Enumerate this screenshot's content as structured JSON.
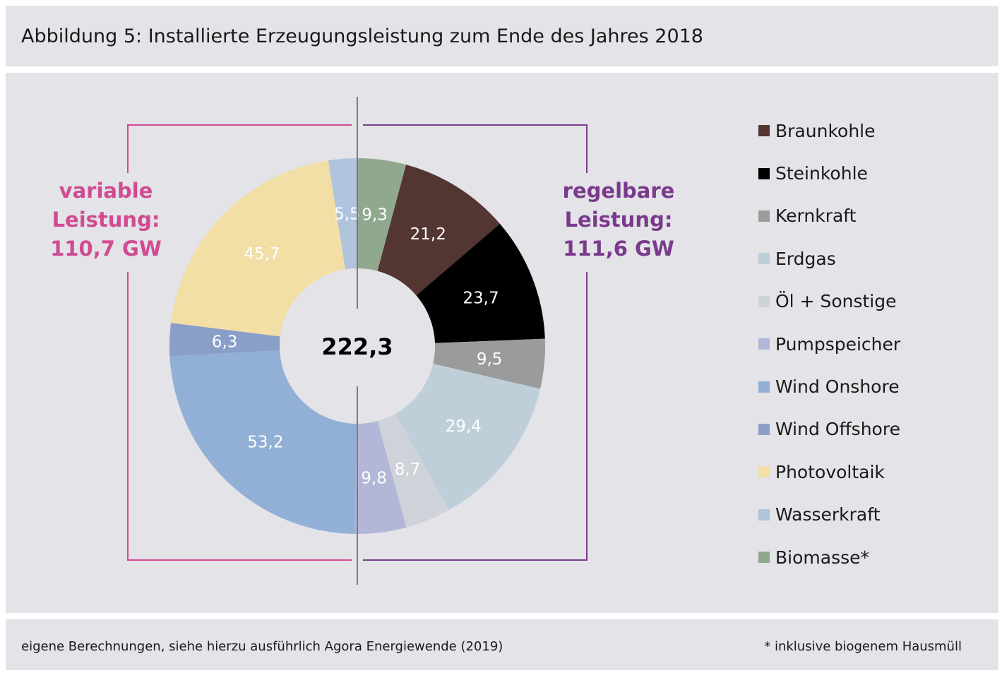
{
  "title": "Abbildung 5: Installierte Erzeugungsleistung zum Ende des Jahres 2018",
  "footer": {
    "source": "eigene Berechnungen, siehe hierzu ausführlich Agora Energiewende (2019)",
    "note": "* inklusive biogenem Hausmüll"
  },
  "groups": {
    "variable": {
      "line1": "variable",
      "line2": "Leistung:",
      "line3": "110,7 GW",
      "color": "#d14b92"
    },
    "regelbar": {
      "line1": "regelbare",
      "line2": "Leistung:",
      "line3": "111,6 GW",
      "color": "#7a3a8c"
    }
  },
  "chart_data": {
    "type": "pie",
    "subtype": "donut",
    "center_label": "222,3",
    "total": 222.3,
    "series": [
      {
        "name": "Biomasse*",
        "value": 9.3,
        "label": "9,3",
        "color": "#90a88e",
        "label_color": "#ffffff"
      },
      {
        "name": "Braunkohle",
        "value": 21.2,
        "label": "21,2",
        "color": "#533532",
        "label_color": "#ffffff"
      },
      {
        "name": "Steinkohle",
        "value": 23.7,
        "label": "23,7",
        "color": "#000000",
        "label_color": "#ffffff"
      },
      {
        "name": "Kernkraft",
        "value": 9.5,
        "label": "9,5",
        "color": "#9b9b9b",
        "label_color": "#ffffff"
      },
      {
        "name": "Erdgas",
        "value": 29.4,
        "label": "29,4",
        "color": "#bfcfda",
        "label_color": "#ffffff"
      },
      {
        "name": "Öl + Sonstige",
        "value": 8.7,
        "label": "8,7",
        "color": "#ced3d9",
        "label_color": "#ffffff"
      },
      {
        "name": "Pumpspeicher",
        "value": 9.8,
        "label": "9,8",
        "color": "#b2b7d7",
        "label_color": "#ffffff"
      },
      {
        "name": "Wind Onshore",
        "value": 53.2,
        "label": "53,2",
        "color": "#92afd6",
        "label_color": "#ffffff"
      },
      {
        "name": "Wind Offshore",
        "value": 6.3,
        "label": "6,3",
        "color": "#8a9fc7",
        "label_color": "#ffffff"
      },
      {
        "name": "Photovoltaik",
        "value": 45.7,
        "label": "45,7",
        "color": "#f1dfa6",
        "label_color": "#ffffff"
      },
      {
        "name": "Wasserkraft",
        "value": 5.5,
        "label": "5,5",
        "color": "#b1c4de",
        "label_color": "#ffffff"
      }
    ],
    "legend": {
      "position": "right",
      "order": [
        "Braunkohle",
        "Steinkohle",
        "Kernkraft",
        "Erdgas",
        "Öl + Sonstige",
        "Pumpspeicher",
        "Wind Onshore",
        "Wind Offshore",
        "Photovoltaik",
        "Wasserkraft",
        "Biomasse*"
      ]
    }
  }
}
